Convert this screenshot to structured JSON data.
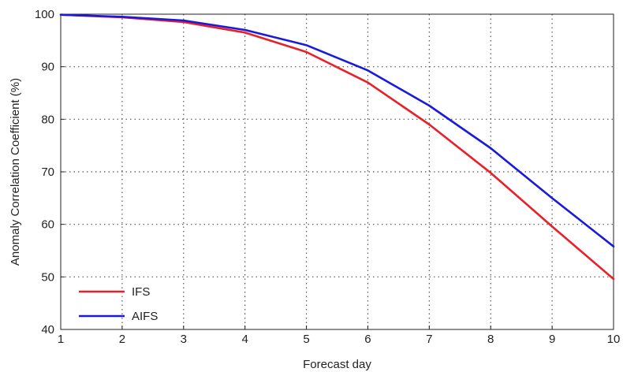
{
  "chart_data": {
    "type": "line",
    "xlabel": "Forecast day",
    "ylabel": "Anomaly Correlation Coefficient (%)",
    "xlim": [
      1,
      10
    ],
    "ylim": [
      40,
      100
    ],
    "x_ticks": [
      1,
      2,
      3,
      4,
      5,
      6,
      7,
      8,
      9,
      10
    ],
    "y_ticks": [
      40,
      50,
      60,
      70,
      80,
      90,
      100
    ],
    "grid": true,
    "grid_style": "dotted",
    "legend_position": "bottom-left",
    "x": [
      1,
      2,
      3,
      4,
      5,
      6,
      7,
      8,
      9,
      10
    ],
    "series": [
      {
        "name": "IFS",
        "color": "#e8202a",
        "values": [
          99.9,
          99.4,
          98.5,
          96.5,
          92.8,
          87.0,
          79.0,
          69.8,
          59.6,
          49.6
        ]
      },
      {
        "name": "AIFS",
        "color": "#1a1adc",
        "values": [
          99.9,
          99.5,
          98.8,
          97.0,
          94.1,
          89.3,
          82.6,
          74.5,
          65.0,
          55.8
        ]
      }
    ]
  }
}
